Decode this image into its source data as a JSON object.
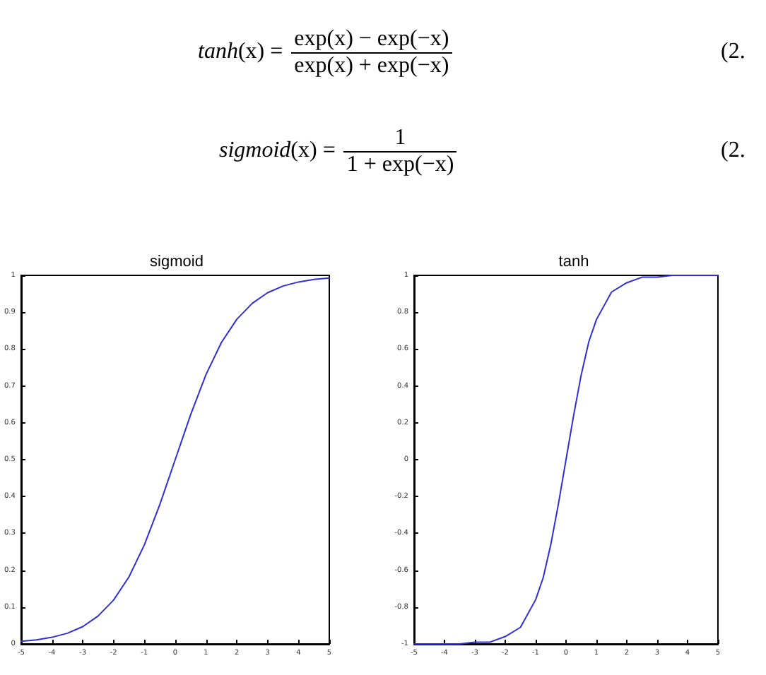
{
  "chart_data": [
    {
      "type": "other",
      "annotations": [
        "tanh(x) =",
        "exp(x) − exp(−x)",
        "exp(x) + exp(−x)",
        "(2.",
        "sigmoid(x) =",
        "1",
        "1 + exp(−x)",
        "(2."
      ]
    },
    {
      "type": "line",
      "title": "sigmoid",
      "marker": "none",
      "grid": false,
      "x": [
        -5,
        -4.5,
        -4,
        -3.5,
        -3,
        -2.5,
        -2,
        -1.5,
        -1,
        -0.5,
        0,
        0.5,
        1,
        1.5,
        2,
        2.5,
        3,
        3.5,
        4,
        4.5,
        5
      ],
      "series": [
        {
          "color": "#2f2fd6",
          "values": [
            0.007,
            0.011,
            0.018,
            0.029,
            0.047,
            0.076,
            0.119,
            0.182,
            0.269,
            0.378,
            0.5,
            0.622,
            0.731,
            0.818,
            0.881,
            0.924,
            0.953,
            0.971,
            0.982,
            0.989,
            0.993
          ]
        }
      ],
      "xlim": [
        -5,
        5
      ],
      "xticks": [
        -5,
        -4,
        -3,
        -2,
        -1,
        0,
        1,
        2,
        3,
        4,
        5
      ],
      "ylim": [
        0,
        1
      ],
      "yticks": [
        0,
        0.1,
        0.2,
        0.3,
        0.4,
        0.5,
        0.6,
        0.7,
        0.8,
        0.9,
        1
      ]
    },
    {
      "type": "line",
      "title": "tanh",
      "marker": "none",
      "grid": false,
      "x": [
        -5,
        -4.5,
        -4,
        -3.5,
        -3,
        -2.5,
        -2,
        -1.5,
        -1,
        -0.75,
        -0.5,
        -0.25,
        0,
        0.25,
        0.5,
        0.75,
        1,
        1.5,
        2,
        2.5,
        3,
        3.5,
        4,
        4.5,
        5
      ],
      "series": [
        {
          "color": "#2f2fd6",
          "values": [
            -1,
            -1,
            -1,
            -1,
            -0.99,
            -0.99,
            -0.96,
            -0.91,
            -0.76,
            -0.64,
            -0.46,
            -0.24,
            0,
            0.24,
            0.46,
            0.64,
            0.76,
            0.91,
            0.96,
            0.99,
            0.99,
            1,
            1,
            1,
            1
          ]
        }
      ],
      "xlim": [
        -5,
        5
      ],
      "xticks": [
        -5,
        -4,
        -3,
        -2,
        -1,
        0,
        1,
        2,
        3,
        4,
        5
      ],
      "ylim": [
        -1,
        1
      ],
      "yticks": [
        -1,
        -0.8,
        -0.6,
        -0.4,
        -0.2,
        0,
        0.2,
        0.4,
        0.6,
        0.8,
        1
      ]
    }
  ]
}
